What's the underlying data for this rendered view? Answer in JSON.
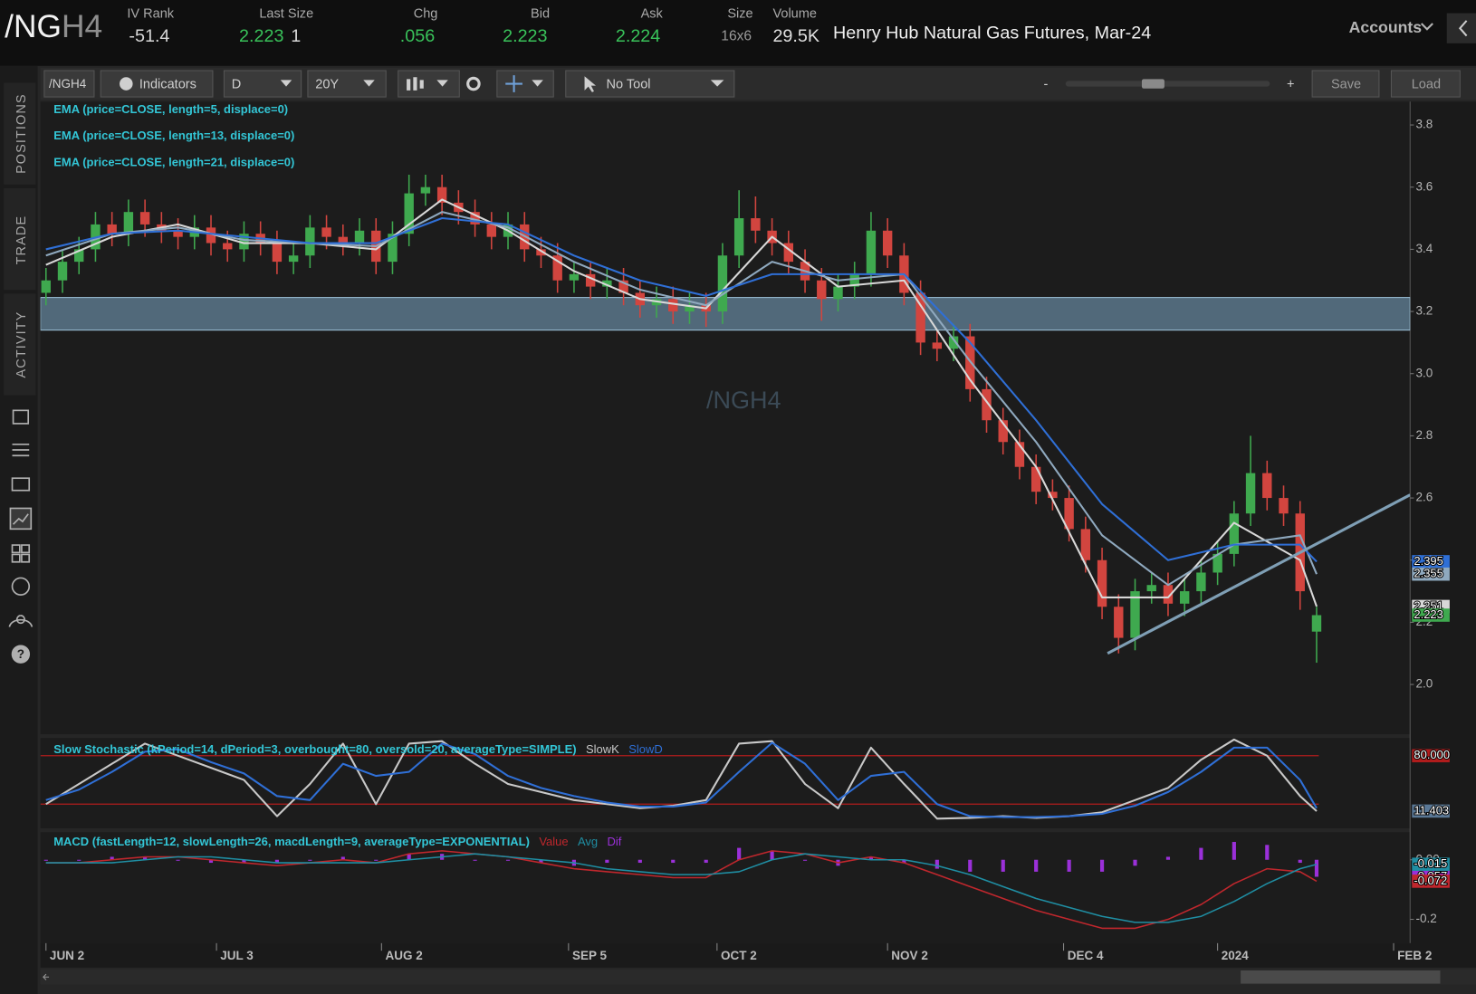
{
  "header": {
    "symbol_root": "/NG",
    "symbol_month": "H4",
    "iv_rank": {
      "label": "IV Rank",
      "value": "-51.4"
    },
    "last_size": {
      "label": "Last Size",
      "value": "2.223",
      "size": "1"
    },
    "chg": {
      "label": "Chg",
      "value": ".056"
    },
    "bid": {
      "label": "Bid",
      "value": "2.223"
    },
    "ask": {
      "label": "Ask",
      "value": "2.224"
    },
    "size": {
      "label": "Size",
      "value": "16x6"
    },
    "volume": {
      "label": "Volume",
      "value": "29.5K"
    },
    "description": "Henry Hub Natural Gas Futures, Mar-24",
    "accounts": "Accounts"
  },
  "sidebar": {
    "tabs": [
      "POSITIONS",
      "TRADE",
      "ACTIVITY"
    ]
  },
  "toolbar": {
    "symbol": "/NGH4",
    "indicators": "Indicators",
    "aggregation": "D",
    "period": "20Y",
    "tool": "No Tool",
    "zoom_out": "-",
    "zoom_in": "+",
    "save": "Save",
    "load": "Load"
  },
  "chart_data": {
    "type": "candlestick",
    "watermark": "/NGH4",
    "up_color": "#3fa94f",
    "down_color": "#d2453f",
    "x": [
      2,
      5,
      8,
      11,
      14,
      17,
      20,
      23,
      26,
      29,
      32,
      35,
      38,
      41,
      44,
      47,
      50,
      53,
      56,
      59,
      62,
      65,
      68,
      71,
      74,
      77,
      80,
      83,
      86,
      89,
      92,
      95,
      98,
      101,
      104,
      107,
      110,
      113,
      116,
      119,
      122,
      125,
      128,
      131,
      134,
      137,
      140,
      143,
      146,
      149,
      152,
      155,
      158,
      161,
      164,
      167,
      170,
      173,
      176,
      179,
      182,
      185,
      188,
      191,
      194,
      197,
      200,
      203,
      206,
      209,
      212,
      215,
      218,
      221,
      224,
      227,
      230,
      233
    ],
    "open": [
      3.26,
      3.3,
      3.36,
      3.4,
      3.48,
      3.45,
      3.52,
      3.48,
      3.46,
      3.44,
      3.47,
      3.42,
      3.4,
      3.45,
      3.42,
      3.36,
      3.38,
      3.47,
      3.44,
      3.42,
      3.46,
      3.36,
      3.45,
      3.58,
      3.6,
      3.55,
      3.52,
      3.48,
      3.44,
      3.48,
      3.4,
      3.38,
      3.3,
      3.32,
      3.28,
      3.3,
      3.26,
      3.22,
      3.24,
      3.2,
      3.22,
      3.2,
      3.38,
      3.5,
      3.46,
      3.42,
      3.36,
      3.3,
      3.24,
      3.28,
      3.32,
      3.46,
      3.38,
      3.26,
      3.1,
      3.08,
      3.12,
      2.95,
      2.85,
      2.78,
      2.7,
      2.62,
      2.6,
      2.5,
      2.4,
      2.25,
      2.15,
      2.3,
      2.32,
      2.26,
      2.3,
      2.36,
      2.42,
      2.55,
      2.68,
      2.6,
      2.55,
      2.17
    ],
    "high": [
      3.34,
      3.4,
      3.44,
      3.52,
      3.52,
      3.56,
      3.56,
      3.52,
      3.5,
      3.51,
      3.51,
      3.46,
      3.49,
      3.49,
      3.46,
      3.42,
      3.51,
      3.51,
      3.48,
      3.5,
      3.5,
      3.49,
      3.64,
      3.64,
      3.64,
      3.59,
      3.56,
      3.52,
      3.52,
      3.52,
      3.44,
      3.42,
      3.36,
      3.36,
      3.34,
      3.34,
      3.3,
      3.28,
      3.28,
      3.26,
      3.26,
      3.42,
      3.59,
      3.57,
      3.5,
      3.46,
      3.4,
      3.34,
      3.32,
      3.36,
      3.52,
      3.5,
      3.42,
      3.3,
      3.14,
      3.16,
      3.16,
      2.99,
      2.89,
      2.82,
      2.74,
      2.66,
      2.64,
      2.54,
      2.44,
      2.29,
      2.34,
      2.36,
      2.36,
      2.34,
      2.4,
      2.46,
      2.59,
      2.8,
      2.72,
      2.64,
      2.59,
      2.25
    ],
    "low": [
      3.22,
      3.26,
      3.32,
      3.36,
      3.41,
      3.41,
      3.44,
      3.42,
      3.4,
      3.4,
      3.38,
      3.36,
      3.36,
      3.38,
      3.32,
      3.32,
      3.34,
      3.4,
      3.38,
      3.38,
      3.32,
      3.32,
      3.41,
      3.54,
      3.51,
      3.48,
      3.44,
      3.4,
      3.4,
      3.36,
      3.34,
      3.26,
      3.26,
      3.24,
      3.24,
      3.22,
      3.18,
      3.18,
      3.16,
      3.16,
      3.15,
      3.16,
      3.34,
      3.42,
      3.38,
      3.32,
      3.26,
      3.17,
      3.2,
      3.24,
      3.28,
      3.34,
      3.22,
      3.06,
      3.04,
      3.04,
      2.91,
      2.81,
      2.74,
      2.66,
      2.58,
      2.56,
      2.46,
      2.36,
      2.21,
      2.1,
      2.11,
      2.26,
      2.22,
      2.22,
      2.26,
      2.32,
      2.38,
      2.51,
      2.56,
      2.51,
      2.24,
      2.07
    ],
    "close": [
      3.3,
      3.36,
      3.4,
      3.48,
      3.45,
      3.52,
      3.48,
      3.46,
      3.44,
      3.47,
      3.42,
      3.4,
      3.45,
      3.42,
      3.36,
      3.38,
      3.47,
      3.44,
      3.42,
      3.46,
      3.36,
      3.45,
      3.58,
      3.6,
      3.55,
      3.52,
      3.48,
      3.44,
      3.48,
      3.4,
      3.38,
      3.3,
      3.32,
      3.28,
      3.3,
      3.26,
      3.22,
      3.24,
      3.2,
      3.22,
      3.2,
      3.38,
      3.5,
      3.46,
      3.42,
      3.36,
      3.3,
      3.24,
      3.28,
      3.32,
      3.46,
      3.38,
      3.26,
      3.1,
      3.08,
      3.12,
      2.95,
      2.85,
      2.78,
      2.7,
      2.62,
      2.6,
      2.5,
      2.4,
      2.25,
      2.15,
      2.3,
      2.32,
      2.26,
      2.3,
      2.36,
      2.42,
      2.55,
      2.68,
      2.6,
      2.55,
      2.3,
      2.223
    ],
    "xlim": [
      1,
      250
    ],
    "xticks": [
      {
        "value": 2,
        "label": "JUN 2"
      },
      {
        "value": 33,
        "label": "JUL 3"
      },
      {
        "value": 63,
        "label": "AUG 2"
      },
      {
        "value": 97,
        "label": "SEP 5"
      },
      {
        "value": 124,
        "label": "OCT 2"
      },
      {
        "value": 155,
        "label": "NOV 2"
      },
      {
        "value": 187,
        "label": "DEC 4"
      },
      {
        "value": 215,
        "label": "2024"
      },
      {
        "value": 247,
        "label": "FEB 2"
      }
    ],
    "ylim": [
      1.84,
      3.875
    ],
    "yticks": [
      {
        "value": 2,
        "label": "2.0"
      },
      2.2,
      2.4,
      2.6,
      2.8,
      {
        "value": 3,
        "label": "3.0"
      },
      3.2,
      3.4,
      3.6,
      3.8
    ],
    "support_zone": [
      3.14,
      3.245
    ],
    "trendline": {
      "x": [
        195,
        250
      ],
      "y": [
        2.1,
        2.61
      ],
      "color": "#7f9fb5"
    },
    "overlay_x": [
      2,
      14,
      26,
      38,
      50,
      62,
      74,
      86,
      98,
      110,
      122,
      134,
      146,
      158,
      170,
      182,
      194,
      206,
      218,
      230,
      233
    ],
    "overlays": [
      {
        "label": "EMA (price=CLOSE, length=5, displace=0)",
        "color": "#d8d8d8",
        "values": [
          3.35,
          3.44,
          3.48,
          3.42,
          3.42,
          3.4,
          3.56,
          3.46,
          3.33,
          3.24,
          3.21,
          3.44,
          3.28,
          3.3,
          2.98,
          2.7,
          2.28,
          2.28,
          2.52,
          2.4,
          2.251
        ]
      },
      {
        "label": "EMA (price=CLOSE, length=13, displace=0)",
        "color": "#8fa9bf",
        "values": [
          3.38,
          3.45,
          3.47,
          3.43,
          3.42,
          3.41,
          3.52,
          3.47,
          3.36,
          3.27,
          3.22,
          3.36,
          3.3,
          3.32,
          3.04,
          2.78,
          2.48,
          2.32,
          2.45,
          2.48,
          2.355
        ]
      },
      {
        "label": "EMA (price=CLOSE, length=21, displace=0)",
        "color": "#2f6fd6",
        "values": [
          3.4,
          3.45,
          3.46,
          3.44,
          3.42,
          3.42,
          3.5,
          3.48,
          3.38,
          3.3,
          3.25,
          3.32,
          3.32,
          3.32,
          3.1,
          2.85,
          2.58,
          2.4,
          2.45,
          2.45,
          2.395
        ]
      }
    ],
    "osc_x": [
      2,
      8,
      14,
      20,
      26,
      32,
      38,
      44,
      50,
      56,
      62,
      68,
      74,
      80,
      86,
      92,
      98,
      104,
      110,
      116,
      122,
      128,
      134,
      140,
      146,
      152,
      158,
      164,
      170,
      176,
      182,
      188,
      194,
      200,
      206,
      212,
      218,
      224,
      230,
      233
    ],
    "stochastic": {
      "title": "Slow Stochastic (kPeriod=14, dPeriod=3, overbought=80, oversold=20, averageType=SIMPLE)",
      "ylim": [
        -10,
        102
      ],
      "levels": [
        {
          "value": 80,
          "label": "80.000"
        },
        {
          "value": 20
        }
      ],
      "level_color": "#b01c1c",
      "series": [
        {
          "name": "SlowK",
          "color": "#c8c8c8",
          "values": [
            20,
            45,
            70,
            95,
            80,
            65,
            50,
            5,
            45,
            95,
            20,
            95,
            98,
            70,
            45,
            35,
            25,
            20,
            15,
            18,
            25,
            95,
            98,
            45,
            15,
            90,
            45,
            2,
            3,
            5,
            3,
            5,
            10,
            25,
            40,
            75,
            100,
            80,
            30,
            11.403
          ]
        },
        {
          "name": "SlowD",
          "color": "#2f6fd6",
          "values": [
            25,
            38,
            60,
            85,
            88,
            72,
            58,
            30,
            25,
            70,
            55,
            60,
            95,
            82,
            55,
            40,
            30,
            22,
            17,
            17,
            22,
            60,
            96,
            70,
            25,
            55,
            60,
            20,
            5,
            4,
            4,
            5,
            8,
            18,
            35,
            60,
            90,
            90,
            50,
            15
          ]
        }
      ]
    },
    "macd": {
      "title": "MACD (fastLength=12, slowLength=26, macdLength=9, averageType=EXPONENTIAL)",
      "ylim": [
        -0.28,
        0.093
      ],
      "yticks": [
        {
          "value": 0,
          "label": "0.00"
        },
        {
          "value": -0.2,
          "label": "-0.2"
        }
      ],
      "series": [
        {
          "name": "Value",
          "color": "#c0272d",
          "style": "line",
          "values": [
            -0.01,
            -0.01,
            0,
            0.01,
            0.01,
            0,
            -0.01,
            -0.02,
            -0.01,
            0,
            -0.01,
            0.02,
            0.03,
            0.02,
            0.01,
            -0.01,
            -0.03,
            -0.04,
            -0.05,
            -0.06,
            -0.06,
            0,
            0.03,
            0.02,
            -0.01,
            0.01,
            -0.01,
            -0.05,
            -0.09,
            -0.13,
            -0.17,
            -0.2,
            -0.23,
            -0.23,
            -0.2,
            -0.15,
            -0.08,
            -0.03,
            -0.04,
            -0.072
          ]
        },
        {
          "name": "Avg",
          "color": "#1f8ea3",
          "style": "line",
          "values": [
            -0.01,
            -0.01,
            -0.01,
            0,
            0.01,
            0.01,
            0,
            -0.01,
            -0.01,
            -0.01,
            -0.01,
            0,
            0.01,
            0.02,
            0.01,
            0,
            -0.01,
            -0.03,
            -0.04,
            -0.05,
            -0.05,
            -0.04,
            0,
            0.02,
            0.01,
            0,
            0,
            -0.02,
            -0.05,
            -0.09,
            -0.13,
            -0.16,
            -0.19,
            -0.21,
            -0.21,
            -0.19,
            -0.14,
            -0.08,
            -0.03,
            -0.015
          ]
        },
        {
          "name": "Dif",
          "color": "#9b30d9",
          "style": "histogram",
          "values": [
            0,
            0,
            0.01,
            0.01,
            0,
            -0.01,
            -0.01,
            -0.01,
            0,
            0.01,
            0,
            0.02,
            0.02,
            0,
            0,
            -0.01,
            -0.02,
            -0.01,
            -0.01,
            -0.01,
            -0.01,
            0.04,
            0.03,
            0,
            -0.02,
            0.01,
            -0.01,
            -0.03,
            -0.04,
            -0.04,
            -0.04,
            -0.04,
            -0.04,
            -0.02,
            0.01,
            0.04,
            0.06,
            0.05,
            -0.01,
            -0.057
          ]
        }
      ]
    }
  }
}
